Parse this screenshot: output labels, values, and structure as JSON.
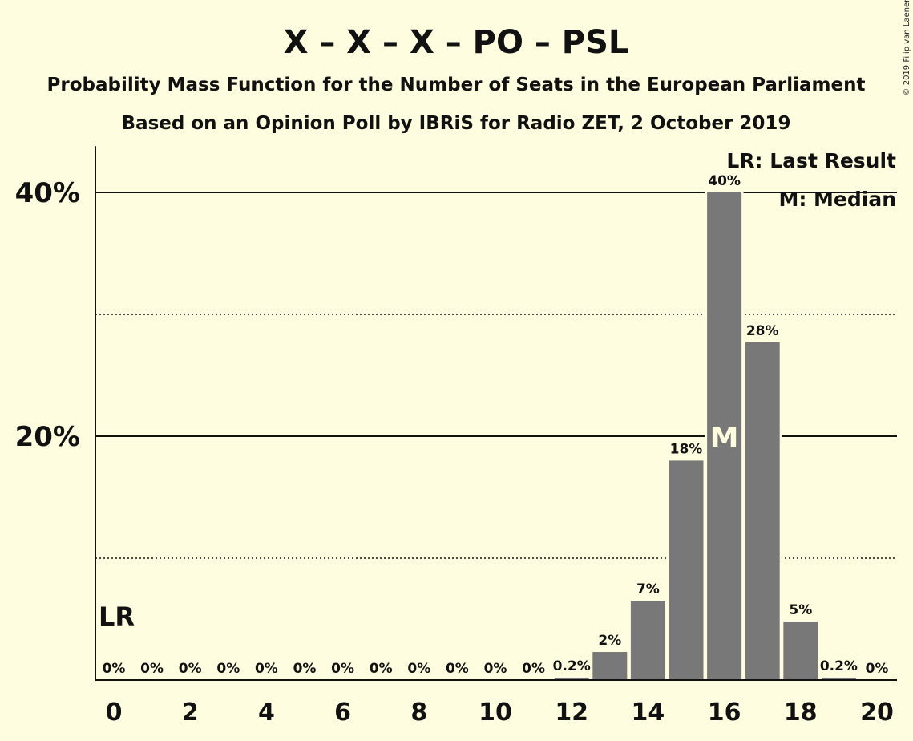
{
  "chart_data": {
    "type": "bar",
    "title": "X – X – X – PO – PSL",
    "subtitle_lines": [
      "Probability Mass Function for the Number of Seats in the European Parliament",
      "Based on an Opinion Poll by IBRiS for Radio ZET, 2 October 2019"
    ],
    "categories": [
      0,
      1,
      2,
      3,
      4,
      5,
      6,
      7,
      8,
      9,
      10,
      11,
      12,
      13,
      14,
      15,
      16,
      17,
      18,
      19,
      20
    ],
    "x_tick_labels": [
      "0",
      "2",
      "4",
      "6",
      "8",
      "10",
      "12",
      "14",
      "16",
      "18",
      "20"
    ],
    "values": [
      0,
      0,
      0,
      0,
      0,
      0,
      0,
      0,
      0,
      0,
      0,
      0,
      0.2,
      2.3,
      6.5,
      18,
      40,
      27.7,
      4.8,
      0.2,
      0
    ],
    "value_labels": [
      "0%",
      "0%",
      "0%",
      "0%",
      "0%",
      "0%",
      "0%",
      "0%",
      "0%",
      "0%",
      "0%",
      "0%",
      "0.2%",
      "2%",
      "7%",
      "18%",
      "40%",
      "28%",
      "5%",
      "0.2%",
      "0%"
    ],
    "y_tick_labels": [
      "20%",
      "40%"
    ],
    "ylim": [
      0,
      43.8
    ],
    "solid_gridlines": [
      20,
      40
    ],
    "dotted_gridlines": [
      10,
      30
    ],
    "last_result_seat": 0,
    "last_result_marker": "LR",
    "median_seat": 16,
    "median_marker": "M",
    "legend": {
      "last_result": "LR: Last Result",
      "median": "M: Median",
      "placement": "top-right"
    },
    "copyright": "© 2019 Filip van Laenen",
    "colors": {
      "background": "#fffde0",
      "bar": "#787878",
      "text": "#111111",
      "median_marker": "#fffde0"
    }
  }
}
